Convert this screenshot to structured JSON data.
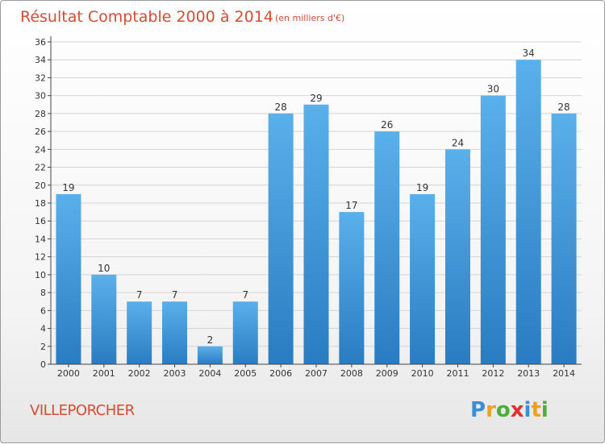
{
  "chart_data": {
    "type": "bar",
    "title": "Résultat Comptable 2000 à 2014",
    "subtitle": "(en milliers d'€)",
    "categories": [
      "2000",
      "2001",
      "2002",
      "2003",
      "2004",
      "2005",
      "2006",
      "2007",
      "2008",
      "2009",
      "2010",
      "2011",
      "2012",
      "2013",
      "2014"
    ],
    "values": [
      19,
      10,
      7,
      7,
      2,
      7,
      28,
      29,
      17,
      26,
      19,
      24,
      30,
      34,
      28
    ],
    "ylim": [
      0,
      36
    ],
    "yticks": [
      0,
      2,
      4,
      6,
      8,
      10,
      12,
      14,
      16,
      18,
      20,
      22,
      24,
      26,
      28,
      30,
      32,
      34,
      36
    ],
    "xlabel": "",
    "ylabel": "",
    "grid": true,
    "bar_color_top": "#5ab0ea",
    "bar_color_bottom": "#2a7cc2"
  },
  "commune": "VILLEPORCHER",
  "logo": {
    "letters": [
      "P",
      "r",
      "o",
      "x",
      "i",
      "t",
      "i"
    ],
    "colors": [
      "#3b8fd6",
      "#f0a020",
      "#4caf3a",
      "#e03030",
      "#3b8fd6",
      "#f0a020",
      "#4caf3a"
    ]
  }
}
